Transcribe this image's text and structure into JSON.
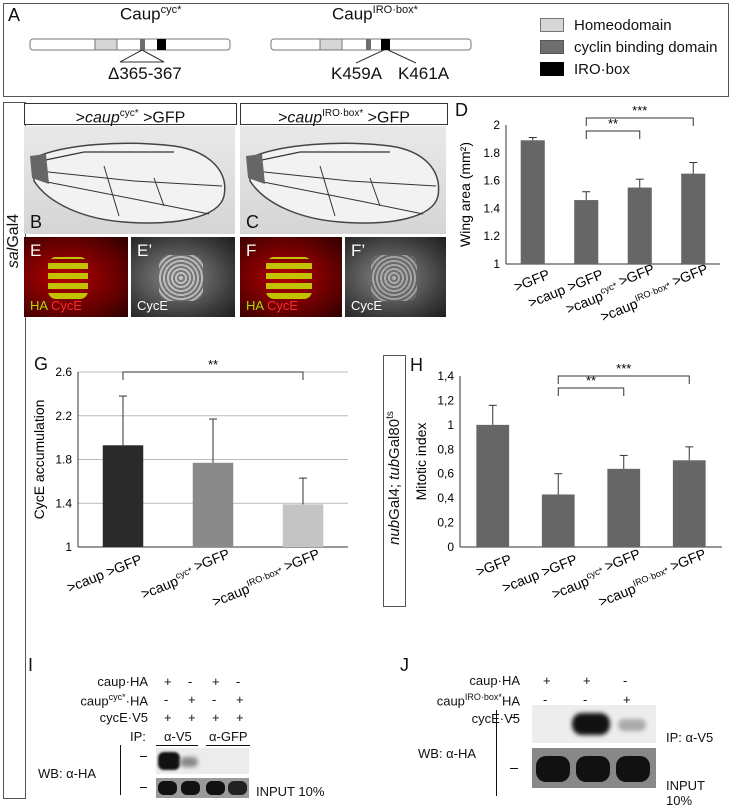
{
  "panelA": {
    "letter": "A",
    "construct1": {
      "name": "Caup",
      "sup": "cyc*",
      "mutation": "Δ365-367"
    },
    "construct2": {
      "name": "Caup",
      "sup": "IRO·box*",
      "mutation1": "K459A",
      "mutation2": "K461A"
    },
    "legend": [
      {
        "label": "Homeodomain",
        "color": "#d6d6d6"
      },
      {
        "label": "cyclin binding domain",
        "color": "#6e6e6e"
      },
      {
        "label": "IRO·box",
        "color": "#000000"
      }
    ]
  },
  "side_label": {
    "italic": "sal",
    "rest": "Gal4"
  },
  "panelB": {
    "letter": "B",
    "header_pre": ">",
    "header_gene": "caup",
    "header_sup": "cyc*",
    "header_post": " >GFP"
  },
  "panelC": {
    "letter": "C",
    "header_pre": ">",
    "header_gene": "caup",
    "header_sup": "IRO·box*",
    "header_post": " >GFP"
  },
  "micro": [
    {
      "letter": "E",
      "labels": [
        "HA",
        "CycE"
      ]
    },
    {
      "letter": "E’",
      "labels": [
        "CycE"
      ]
    },
    {
      "letter": "F",
      "labels": [
        "HA",
        "CycE"
      ]
    },
    {
      "letter": "F’",
      "labels": [
        "CycE"
      ]
    }
  ],
  "chart_data": [
    {
      "panel": "D",
      "type": "bar",
      "ylabel": "Wing area (mm²)",
      "ylim": [
        1,
        2
      ],
      "yticks": [
        "2",
        "1.8",
        "1.6",
        "1.4",
        "1.2",
        "1"
      ],
      "categories": [
        ">GFP",
        ">caup >GFP",
        ">caup cyc* >GFP",
        ">caup IRO·box* >GFP"
      ],
      "values": [
        1.89,
        1.46,
        1.55,
        1.65
      ],
      "errors": [
        0.02,
        0.06,
        0.06,
        0.08
      ],
      "colors": [
        "#666666",
        "#666666",
        "#666666",
        "#666666"
      ],
      "significance": [
        {
          "from": 1,
          "to": 2,
          "label": "**"
        },
        {
          "from": 1,
          "to": 3,
          "label": "***"
        }
      ],
      "grid": false
    },
    {
      "panel": "G",
      "type": "bar",
      "ylabel": "CycE accumulation",
      "ylim": [
        1,
        2.6
      ],
      "yticks": [
        "2.6",
        "2.2",
        "1.8",
        "1.4",
        "1"
      ],
      "categories": [
        ">caup >GFP",
        ">caup cyc* >GFP",
        ">caup IRO·box* >GFP"
      ],
      "values": [
        1.93,
        1.77,
        1.39
      ],
      "errors": [
        0.45,
        0.4,
        0.24
      ],
      "colors": [
        "#2a2a2a",
        "#8a8a8a",
        "#c4c4c4"
      ],
      "significance": [
        {
          "from": 0,
          "to": 2,
          "label": "**"
        }
      ],
      "grid": true
    },
    {
      "panel": "H",
      "type": "bar",
      "ylabel": "Mitotic index",
      "side_label": {
        "italic1": "nub",
        "rest1": "Gal4; ",
        "italic2": "tub",
        "rest2": "Gal80",
        "sup": "ts"
      },
      "ylim": [
        0,
        1.4
      ],
      "yticks": [
        "1,4",
        "1,2",
        "1",
        "0,8",
        "0,6",
        "0,4",
        "0,2",
        "0"
      ],
      "categories": [
        ">GFP",
        ">caup >GFP",
        ">caup cyc* >GFP",
        ">caup IRO·box* >GFP"
      ],
      "values": [
        1.0,
        0.43,
        0.64,
        0.71
      ],
      "errors": [
        0.16,
        0.17,
        0.11,
        0.11
      ],
      "colors": [
        "#666666",
        "#666666",
        "#666666",
        "#666666"
      ],
      "significance": [
        {
          "from": 1,
          "to": 2,
          "label": "**"
        },
        {
          "from": 1,
          "to": 3,
          "label": "***"
        }
      ],
      "grid": false
    }
  ],
  "panelI": {
    "letter": "I",
    "rows": [
      {
        "label": "caup·HA",
        "sup": "",
        "marks": [
          "+",
          "-",
          "+",
          "-"
        ]
      },
      {
        "label": "caup",
        "sup": "cyc*",
        "suffix": "·HA",
        "marks": [
          "-",
          "+",
          "-",
          "+"
        ]
      },
      {
        "label": "cycE·V5",
        "sup": "",
        "marks": [
          "+",
          "+",
          "+",
          "+"
        ]
      }
    ],
    "ip_label": "IP:",
    "ip1": "α-V5",
    "ip2": "α-GFP",
    "wb": "WB: α-HA",
    "input": "INPUT 10%"
  },
  "panelJ": {
    "letter": "J",
    "rows": [
      {
        "label": "caup·HA",
        "sup": "",
        "marks": [
          "+",
          "+",
          "-"
        ]
      },
      {
        "label": "caup",
        "sup": "IRO·box*",
        "suffix": "HA",
        "marks": [
          "-",
          "-",
          "+"
        ]
      },
      {
        "label": "cycE·V5",
        "sup": "",
        "marks": [
          "-",
          "+",
          "+"
        ]
      }
    ],
    "ip": "IP: α-V5",
    "wb": "WB: α-HA",
    "input": "INPUT 10%"
  }
}
